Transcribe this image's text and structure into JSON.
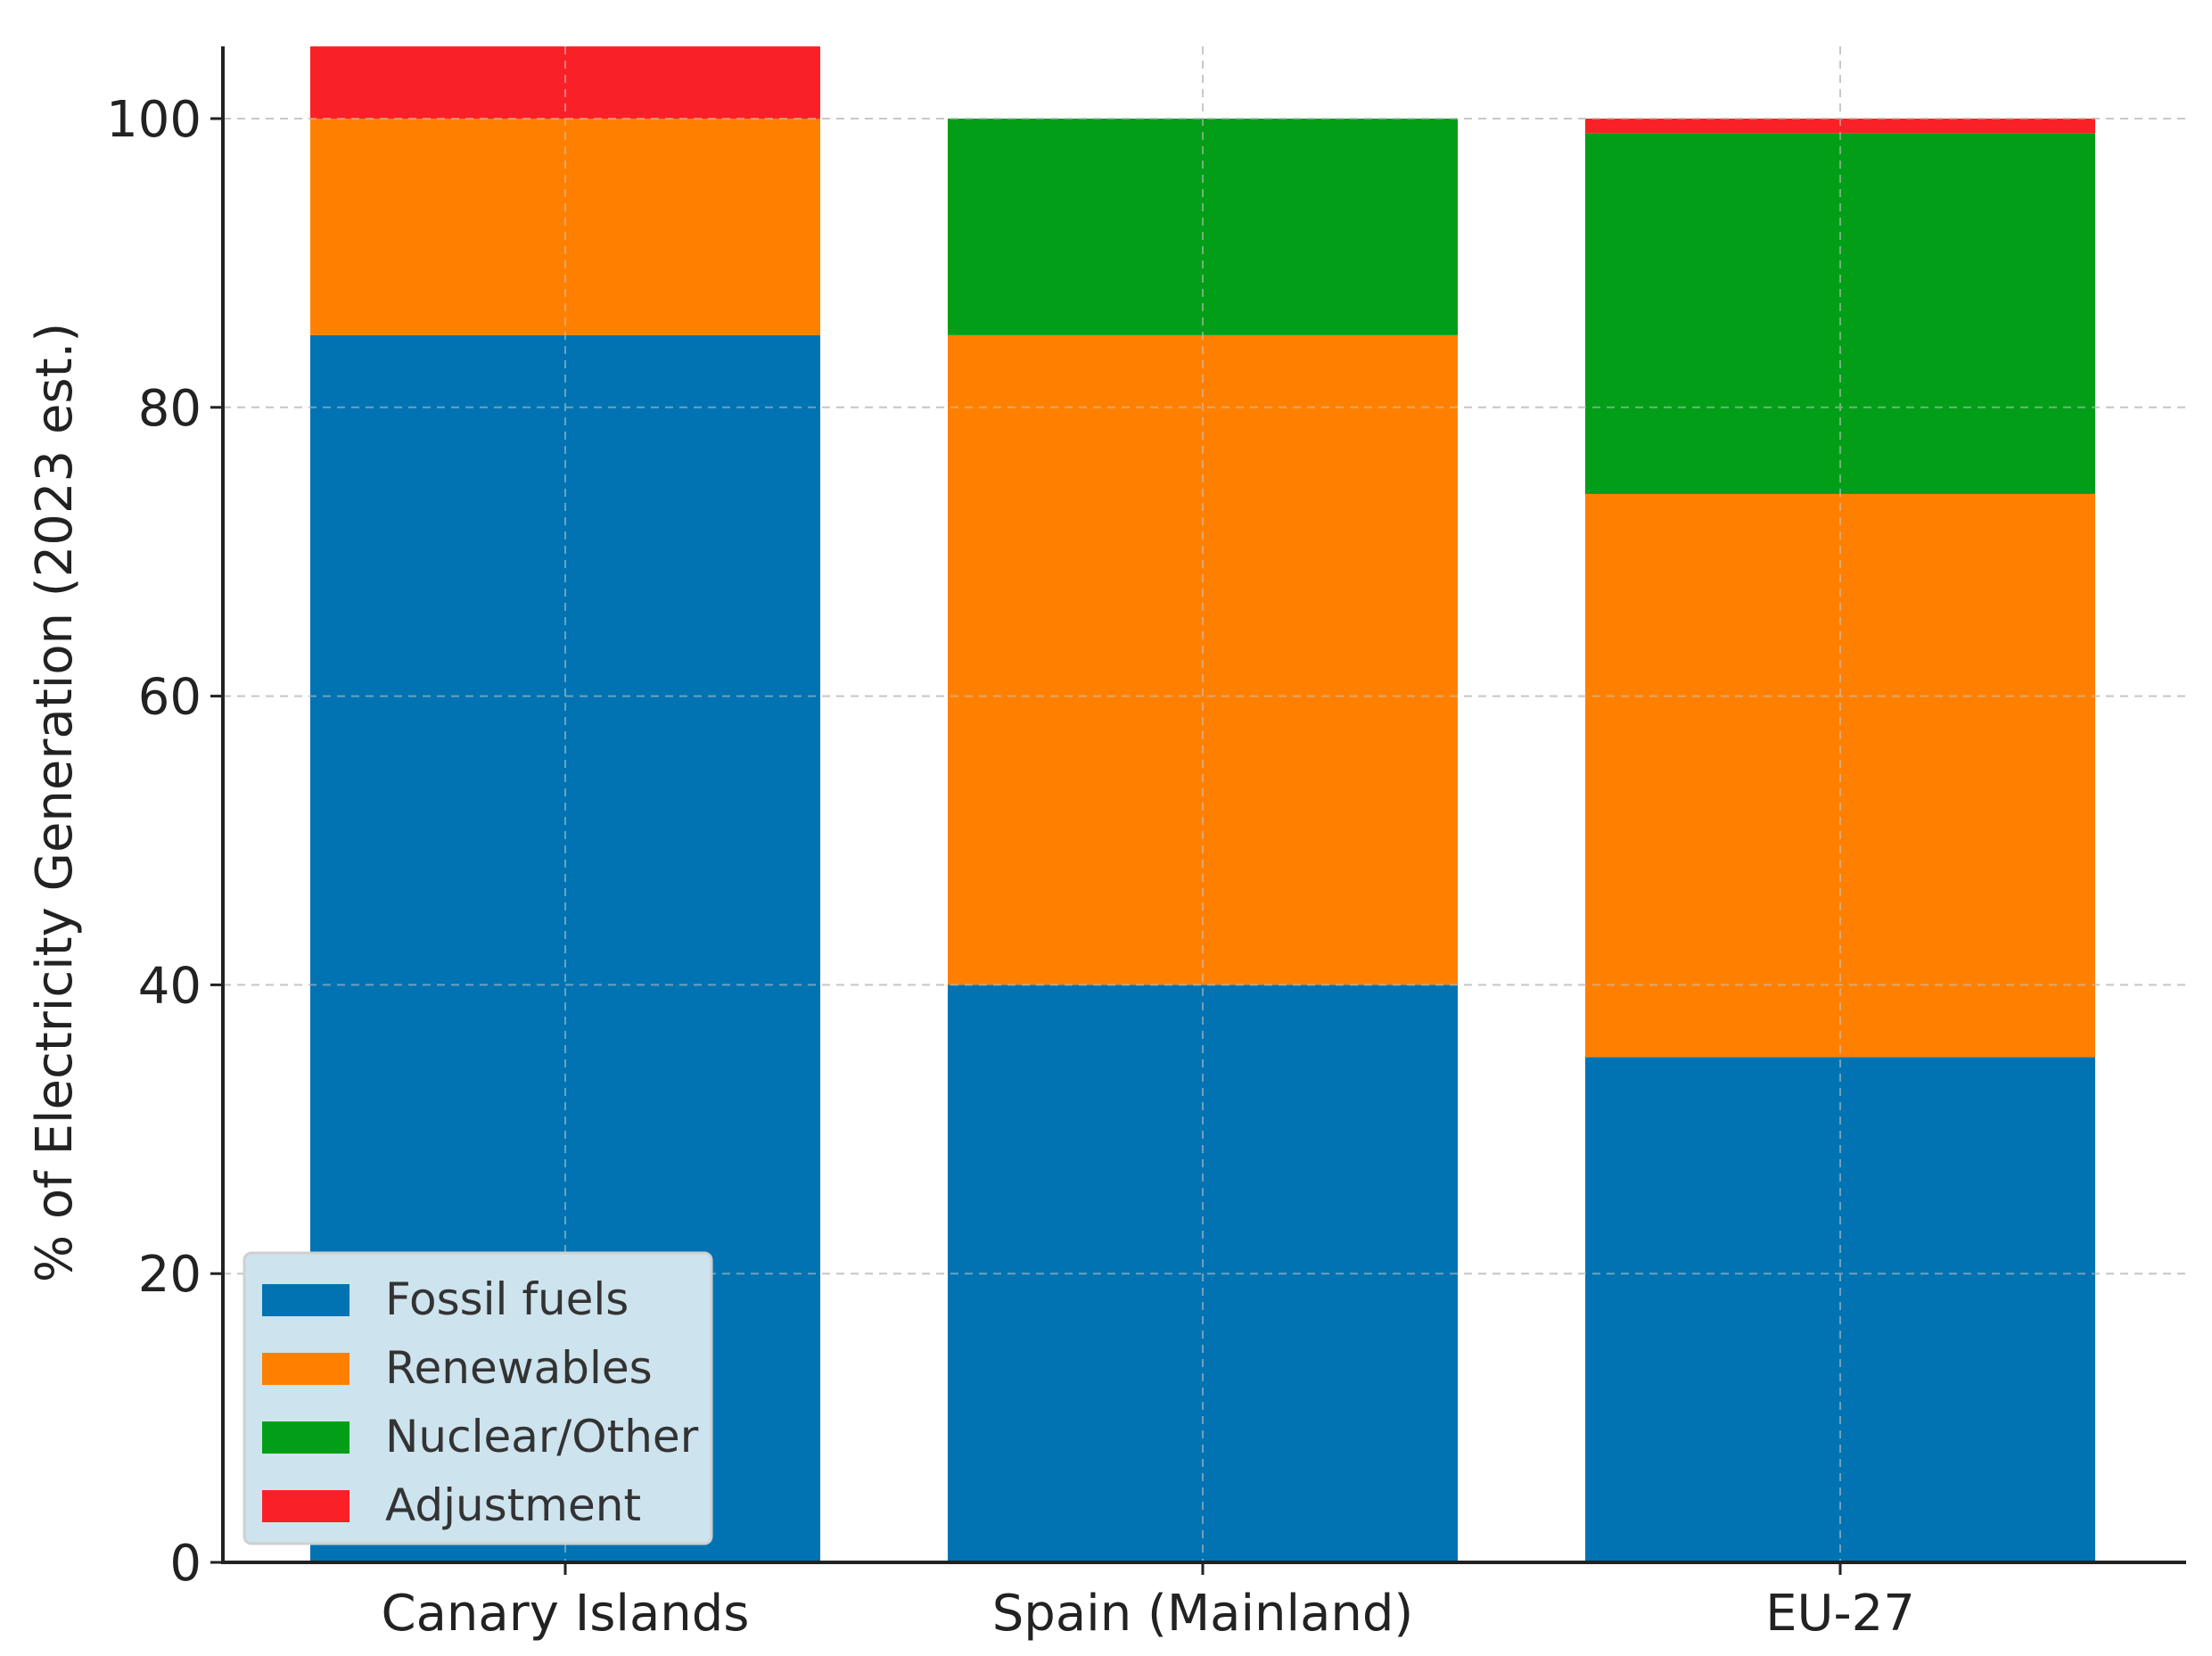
{
  "chart_data": {
    "type": "stacked-bar",
    "title": "",
    "xlabel": "",
    "ylabel": "% of Electricity Generation (2023 est.)",
    "ylim": [
      0,
      105
    ],
    "yticks": [
      "0",
      "20",
      "40",
      "60",
      "80",
      "100"
    ],
    "grid": true,
    "legend_position": "bottom-left",
    "categories": [
      "Canary Islands",
      "Spain (Mainland)",
      "EU-27"
    ],
    "series": [
      {
        "name": "Fossil fuels",
        "color": "#0173b2",
        "values": [
          85,
          40,
          35
        ]
      },
      {
        "name": "Renewables",
        "color": "#ff8000",
        "values": [
          15,
          45,
          39
        ]
      },
      {
        "name": "Nuclear/Other",
        "color": "#029e18",
        "values": [
          0,
          15,
          25
        ]
      },
      {
        "name": "Adjustment",
        "color": "#f92127",
        "values": [
          5,
          0,
          1
        ]
      }
    ]
  }
}
